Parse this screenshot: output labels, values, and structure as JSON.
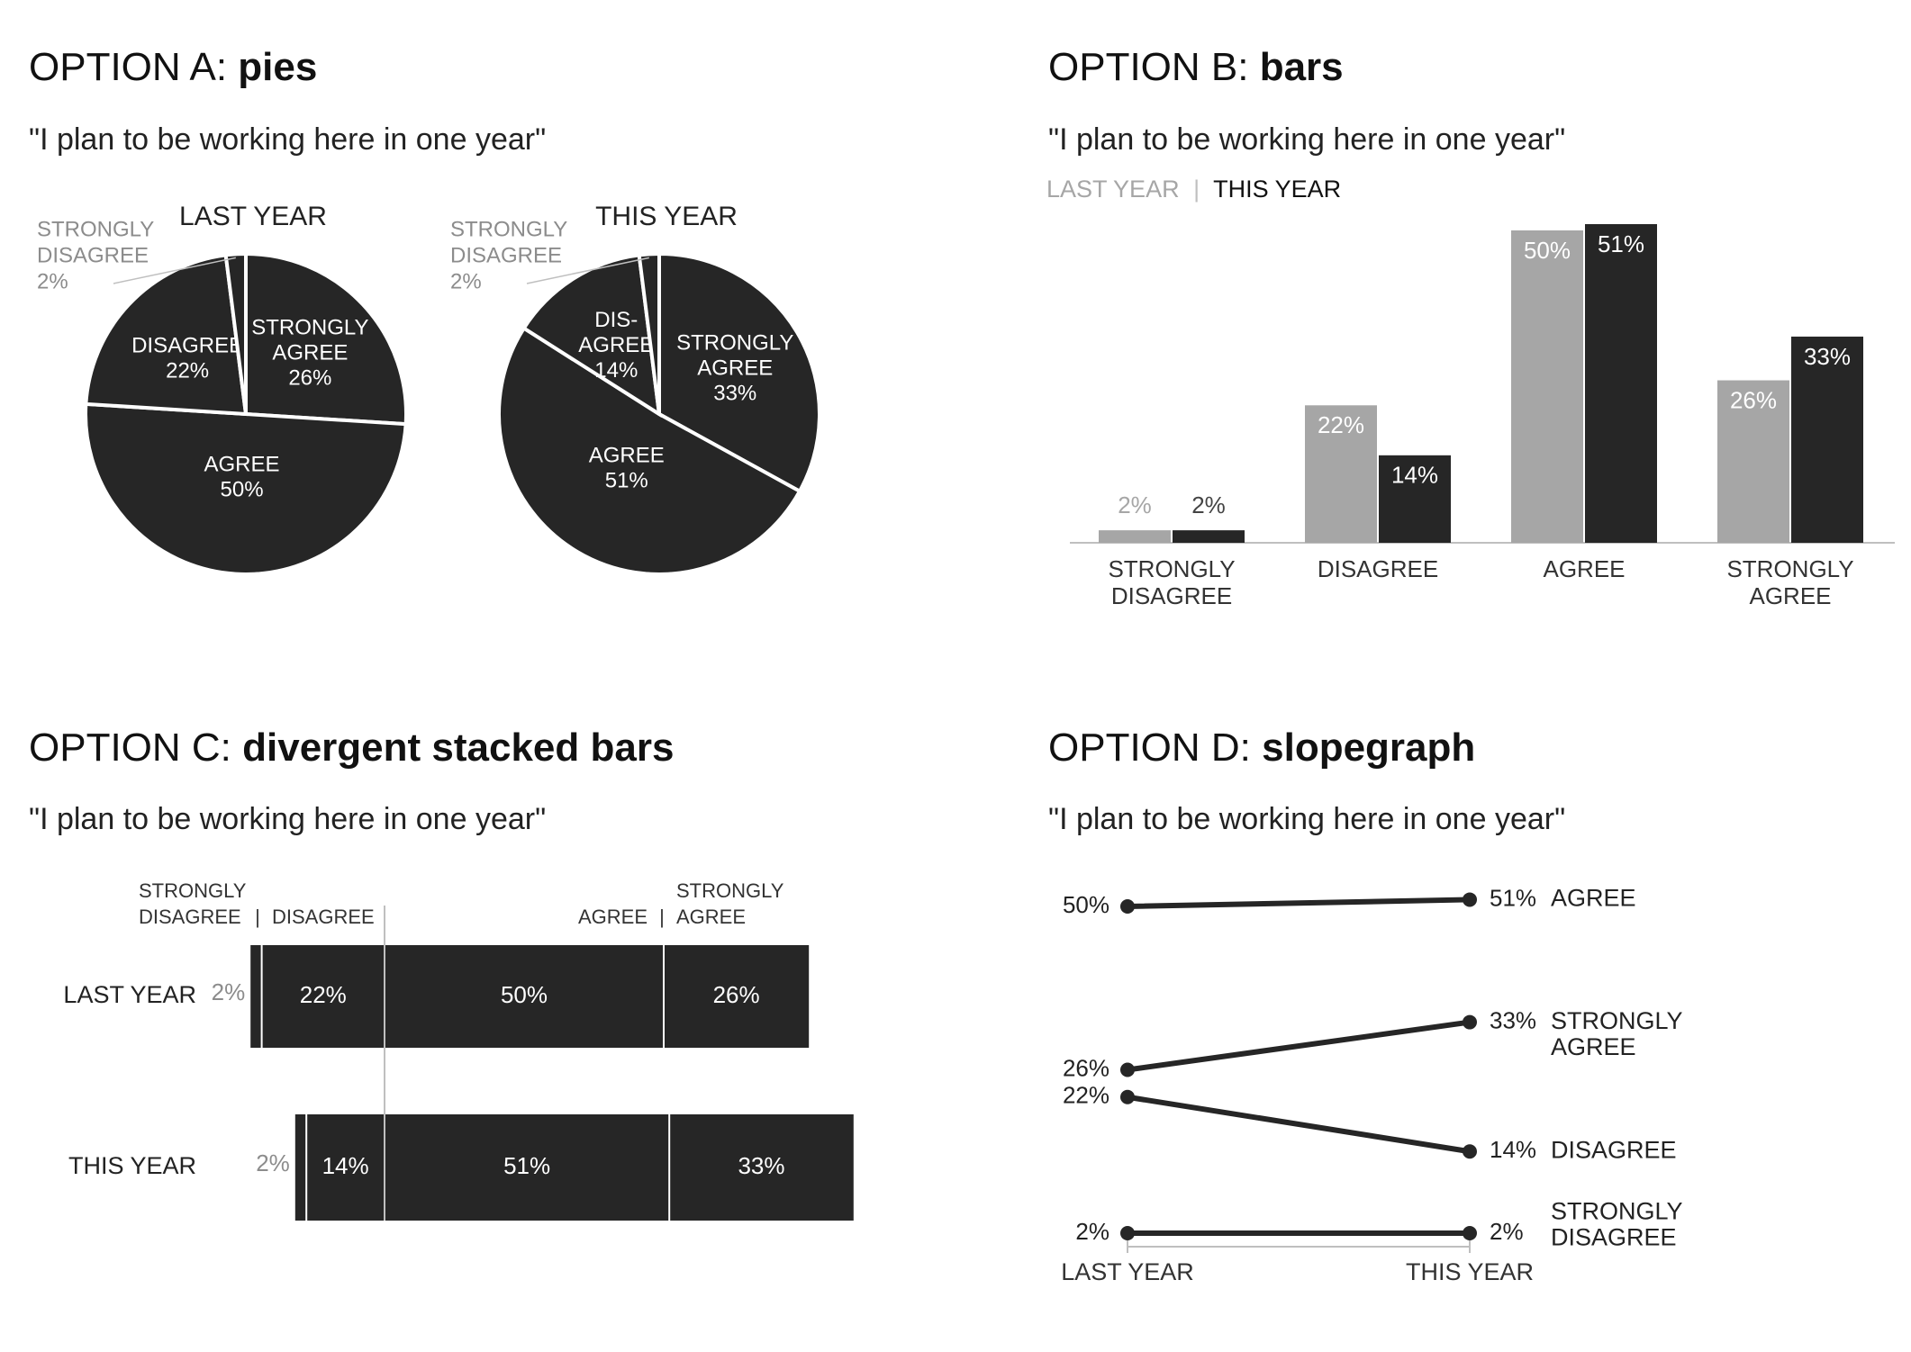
{
  "colors": {
    "dark": "#262626",
    "light": "#a6a6a6",
    "grey_text": "#8c8c8c",
    "axis": "#bfbfbf",
    "white": "#ffffff"
  },
  "categories": [
    "STRONGLY DISAGREE",
    "DISAGREE",
    "AGREE",
    "STRONGLY AGREE"
  ],
  "question": "\"I plan to be working here in one year\"",
  "periods": {
    "last": "LAST YEAR",
    "this": "THIS YEAR"
  },
  "panels": {
    "a": {
      "prefix": "OPTION A: ",
      "bold": "pies"
    },
    "b": {
      "prefix": "OPTION B: ",
      "bold": "bars"
    },
    "c": {
      "prefix": "OPTION C: ",
      "bold": "divergent stacked bars"
    },
    "d": {
      "prefix": "OPTION D: ",
      "bold": "slopegraph"
    }
  },
  "legend_separator": "|",
  "chart_data": [
    {
      "type": "pie",
      "panel": "OPTION A: pies",
      "subtitle": "\"I plan to be working here in one year\"",
      "pies": [
        {
          "title": "LAST YEAR",
          "slices": [
            {
              "label": "STRONGLY AGREE",
              "value": 26,
              "text": [
                "STRONGLY",
                "AGREE",
                "26%"
              ]
            },
            {
              "label": "AGREE",
              "value": 50,
              "text": [
                "AGREE",
                "50%"
              ]
            },
            {
              "label": "DISAGREE",
              "value": 22,
              "text": [
                "DISAGREE",
                "22%"
              ]
            },
            {
              "label": "STRONGLY DISAGREE",
              "value": 2,
              "text": [
                "STRONGLY",
                "DISAGREE",
                "2%"
              ]
            }
          ]
        },
        {
          "title": "THIS YEAR",
          "slices": [
            {
              "label": "STRONGLY AGREE",
              "value": 33,
              "text": [
                "STRONGLY",
                "AGREE",
                "33%"
              ]
            },
            {
              "label": "AGREE",
              "value": 51,
              "text": [
                "AGREE",
                "51%"
              ]
            },
            {
              "label": "DISAGREE",
              "value": 14,
              "text": [
                "DIS-",
                "AGREE",
                "14%"
              ]
            },
            {
              "label": "STRONGLY DISAGREE",
              "value": 2,
              "text": [
                "STRONGLY",
                "DISAGREE",
                "2%"
              ]
            }
          ]
        }
      ]
    },
    {
      "type": "bar",
      "panel": "OPTION B: bars",
      "subtitle": "\"I plan to be working here in one year\"",
      "legend_position": "top-left",
      "categories": [
        "STRONGLY DISAGREE",
        "DISAGREE",
        "AGREE",
        "STRONGLY AGREE"
      ],
      "series": [
        {
          "name": "LAST YEAR",
          "values": [
            2,
            22,
            50,
            26
          ],
          "labels": [
            "2%",
            "22%",
            "50%",
            "26%"
          ]
        },
        {
          "name": "THIS YEAR",
          "values": [
            2,
            14,
            51,
            33
          ],
          "labels": [
            "2%",
            "14%",
            "51%",
            "33%"
          ]
        }
      ],
      "ylim": [
        0,
        51
      ]
    },
    {
      "type": "bar",
      "orientation": "horizontal-stacked",
      "panel": "OPTION C: divergent stacked bars",
      "subtitle": "\"I plan to be working here in one year\"",
      "segment_labels": [
        "STRONGLY DISAGREE",
        "DISAGREE",
        "AGREE",
        "STRONGLY AGREE"
      ],
      "rows": [
        {
          "name": "LAST YEAR",
          "values": [
            2,
            22,
            50,
            26
          ],
          "labels": [
            "2%",
            "22%",
            "50%",
            "26%"
          ]
        },
        {
          "name": "THIS YEAR",
          "values": [
            2,
            14,
            51,
            33
          ],
          "labels": [
            "2%",
            "14%",
            "51%",
            "33%"
          ]
        }
      ]
    },
    {
      "type": "line",
      "subtype": "slopegraph",
      "panel": "OPTION D: slopegraph",
      "subtitle": "\"I plan to be working here in one year\"",
      "x": [
        "LAST YEAR",
        "THIS YEAR"
      ],
      "series": [
        {
          "name": "AGREE",
          "values": [
            50,
            51
          ],
          "labels": [
            "50%",
            "51%"
          ]
        },
        {
          "name": "STRONGLY AGREE",
          "values": [
            26,
            33
          ],
          "labels": [
            "26%",
            "33%"
          ]
        },
        {
          "name": "DISAGREE",
          "values": [
            22,
            14
          ],
          "labels": [
            "22%",
            "14%"
          ]
        },
        {
          "name": "STRONGLY DISAGREE",
          "values": [
            2,
            2
          ],
          "labels": [
            "2%",
            "2%"
          ]
        }
      ]
    }
  ]
}
